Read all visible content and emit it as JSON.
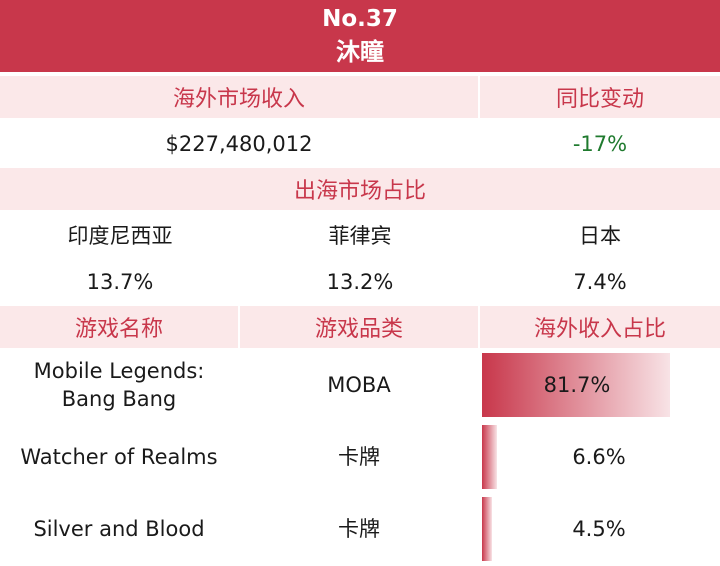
{
  "header": {
    "rank": "No.37",
    "company": "沐瞳"
  },
  "overseas": {
    "revenue_label": "海外市场收入",
    "yoy_label": "同比变动",
    "revenue_value": "$227,480,012",
    "yoy_value": "-17%"
  },
  "markets": {
    "section_label": "出海市场占比",
    "items": [
      {
        "name": "印度尼西亚",
        "share": "13.7%"
      },
      {
        "name": "菲律宾",
        "share": "13.2%"
      },
      {
        "name": "日本",
        "share": "7.4%"
      }
    ]
  },
  "games": {
    "headers": [
      "游戏名称",
      "游戏品类",
      "海外收入占比"
    ],
    "rows": [
      {
        "name_line1": "Mobile Legends:",
        "name_line2": "Bang Bang",
        "genre": "MOBA",
        "share_label": "81.7%",
        "share": 81.7
      },
      {
        "name_line1": "Watcher of Realms",
        "name_line2": "",
        "genre": "卡牌",
        "share_label": "6.6%",
        "share": 6.6
      },
      {
        "name_line1": "Silver and Blood",
        "name_line2": "",
        "genre": "卡牌",
        "share_label": "4.5%",
        "share": 4.5
      }
    ]
  },
  "colors": {
    "accent": "#c8374b",
    "band": "#fbe8e9",
    "negative": "#1f7a2e"
  }
}
